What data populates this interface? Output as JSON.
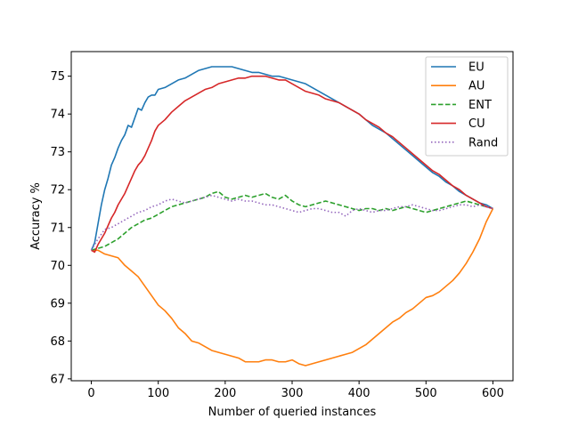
{
  "chart_data": {
    "type": "line",
    "title": "",
    "xlabel": "Number of queried instances",
    "ylabel": "Accuracy %",
    "xlim": [
      -30,
      630
    ],
    "ylim": [
      66.95,
      75.65
    ],
    "xticks": [
      0,
      100,
      200,
      300,
      400,
      500,
      600
    ],
    "yticks": [
      67,
      68,
      69,
      70,
      71,
      72,
      73,
      74,
      75
    ],
    "grid": false,
    "legend_position": "top-right",
    "series": [
      {
        "name": "EU",
        "color": "#1f77b4",
        "style": "solid",
        "x": [
          0,
          5,
          10,
          15,
          20,
          25,
          30,
          35,
          40,
          45,
          50,
          55,
          60,
          65,
          70,
          75,
          80,
          85,
          90,
          95,
          100,
          110,
          120,
          130,
          140,
          150,
          160,
          170,
          180,
          190,
          200,
          210,
          220,
          230,
          240,
          250,
          260,
          270,
          280,
          290,
          300,
          310,
          320,
          330,
          340,
          350,
          360,
          370,
          380,
          390,
          400,
          410,
          420,
          430,
          440,
          450,
          460,
          470,
          480,
          490,
          500,
          510,
          520,
          530,
          540,
          550,
          560,
          570,
          580,
          590,
          600
        ],
        "y": [
          70.4,
          70.6,
          71.1,
          71.6,
          72.0,
          72.3,
          72.65,
          72.85,
          73.1,
          73.3,
          73.45,
          73.7,
          73.65,
          73.9,
          74.15,
          74.1,
          74.3,
          74.45,
          74.5,
          74.5,
          74.65,
          74.7,
          74.8,
          74.9,
          74.95,
          75.05,
          75.15,
          75.2,
          75.25,
          75.25,
          75.25,
          75.25,
          75.2,
          75.15,
          75.1,
          75.1,
          75.05,
          75.0,
          75.0,
          74.95,
          74.9,
          74.85,
          74.8,
          74.7,
          74.6,
          74.5,
          74.4,
          74.3,
          74.2,
          74.1,
          74.0,
          73.85,
          73.7,
          73.6,
          73.5,
          73.35,
          73.2,
          73.05,
          72.9,
          72.75,
          72.6,
          72.45,
          72.35,
          72.2,
          72.1,
          71.95,
          71.85,
          71.75,
          71.65,
          71.6,
          71.5
        ]
      },
      {
        "name": "AU",
        "color": "#ff7f0e",
        "style": "solid",
        "x": [
          0,
          10,
          20,
          30,
          40,
          50,
          60,
          70,
          80,
          90,
          100,
          110,
          120,
          130,
          140,
          150,
          160,
          170,
          180,
          190,
          200,
          210,
          220,
          230,
          240,
          250,
          260,
          270,
          280,
          290,
          300,
          310,
          320,
          330,
          340,
          350,
          360,
          370,
          380,
          390,
          400,
          410,
          420,
          430,
          440,
          450,
          460,
          470,
          480,
          490,
          500,
          510,
          520,
          530,
          540,
          550,
          560,
          570,
          580,
          590,
          600
        ],
        "y": [
          70.4,
          70.4,
          70.3,
          70.25,
          70.2,
          70.0,
          69.85,
          69.7,
          69.45,
          69.2,
          68.95,
          68.8,
          68.6,
          68.35,
          68.2,
          68.0,
          67.95,
          67.85,
          67.75,
          67.7,
          67.65,
          67.6,
          67.55,
          67.45,
          67.45,
          67.45,
          67.5,
          67.5,
          67.45,
          67.45,
          67.5,
          67.4,
          67.35,
          67.4,
          67.45,
          67.5,
          67.55,
          67.6,
          67.65,
          67.7,
          67.8,
          67.9,
          68.05,
          68.2,
          68.35,
          68.5,
          68.6,
          68.75,
          68.85,
          69.0,
          69.15,
          69.2,
          69.3,
          69.45,
          69.6,
          69.8,
          70.05,
          70.35,
          70.7,
          71.15,
          71.5
        ]
      },
      {
        "name": "ENT",
        "color": "#2ca02c",
        "style": "dashed",
        "x": [
          0,
          10,
          20,
          30,
          40,
          50,
          60,
          70,
          80,
          90,
          100,
          110,
          120,
          130,
          140,
          150,
          160,
          170,
          180,
          190,
          200,
          210,
          220,
          230,
          240,
          250,
          260,
          270,
          280,
          290,
          300,
          310,
          320,
          330,
          340,
          350,
          360,
          370,
          380,
          390,
          400,
          410,
          420,
          430,
          440,
          450,
          460,
          470,
          480,
          490,
          500,
          510,
          520,
          530,
          540,
          550,
          560,
          570,
          580,
          590,
          600
        ],
        "y": [
          70.4,
          70.45,
          70.5,
          70.6,
          70.7,
          70.85,
          71.0,
          71.1,
          71.2,
          71.25,
          71.35,
          71.45,
          71.55,
          71.6,
          71.65,
          71.7,
          71.75,
          71.8,
          71.9,
          71.95,
          71.8,
          71.75,
          71.8,
          71.85,
          71.8,
          71.85,
          71.9,
          71.8,
          71.75,
          71.85,
          71.7,
          71.6,
          71.55,
          71.6,
          71.65,
          71.7,
          71.65,
          71.6,
          71.55,
          71.5,
          71.45,
          71.5,
          71.5,
          71.45,
          71.5,
          71.45,
          71.5,
          71.55,
          71.5,
          71.45,
          71.4,
          71.45,
          71.5,
          71.55,
          71.6,
          71.65,
          71.7,
          71.65,
          71.6,
          71.55,
          71.5
        ]
      },
      {
        "name": "CU",
        "color": "#d62728",
        "style": "solid",
        "x": [
          0,
          5,
          10,
          15,
          20,
          25,
          30,
          35,
          40,
          45,
          50,
          55,
          60,
          65,
          70,
          75,
          80,
          85,
          90,
          95,
          100,
          110,
          120,
          130,
          140,
          150,
          160,
          170,
          180,
          190,
          200,
          210,
          220,
          230,
          240,
          250,
          260,
          270,
          280,
          290,
          300,
          310,
          320,
          330,
          340,
          350,
          360,
          370,
          380,
          390,
          400,
          410,
          420,
          430,
          440,
          450,
          460,
          470,
          480,
          490,
          500,
          510,
          520,
          530,
          540,
          550,
          560,
          570,
          580,
          590,
          600
        ],
        "y": [
          70.4,
          70.35,
          70.55,
          70.7,
          70.85,
          71.05,
          71.25,
          71.4,
          71.6,
          71.75,
          71.9,
          72.1,
          72.3,
          72.5,
          72.65,
          72.75,
          72.9,
          73.1,
          73.3,
          73.55,
          73.7,
          73.85,
          74.05,
          74.2,
          74.35,
          74.45,
          74.55,
          74.65,
          74.7,
          74.8,
          74.85,
          74.9,
          74.95,
          74.95,
          75.0,
          75.0,
          75.0,
          74.95,
          74.9,
          74.9,
          74.8,
          74.7,
          74.6,
          74.55,
          74.5,
          74.4,
          74.35,
          74.3,
          74.2,
          74.1,
          74.0,
          73.85,
          73.75,
          73.65,
          73.5,
          73.4,
          73.25,
          73.1,
          72.95,
          72.8,
          72.65,
          72.5,
          72.4,
          72.25,
          72.1,
          72.0,
          71.85,
          71.75,
          71.65,
          71.55,
          71.5
        ]
      },
      {
        "name": "Rand",
        "color": "#9467bd",
        "style": "dotted",
        "x": [
          0,
          10,
          20,
          30,
          40,
          50,
          60,
          70,
          80,
          90,
          100,
          110,
          120,
          130,
          140,
          150,
          160,
          170,
          180,
          190,
          200,
          210,
          220,
          230,
          240,
          250,
          260,
          270,
          280,
          290,
          300,
          310,
          320,
          330,
          340,
          350,
          360,
          370,
          380,
          390,
          400,
          410,
          420,
          430,
          440,
          450,
          460,
          470,
          480,
          490,
          500,
          510,
          520,
          530,
          540,
          550,
          560,
          570,
          580,
          590,
          600
        ],
        "y": [
          70.4,
          70.7,
          70.95,
          71.0,
          71.1,
          71.2,
          71.3,
          71.4,
          71.45,
          71.55,
          71.6,
          71.7,
          71.75,
          71.7,
          71.65,
          71.7,
          71.75,
          71.8,
          71.85,
          71.8,
          71.75,
          71.7,
          71.75,
          71.7,
          71.7,
          71.65,
          71.6,
          71.6,
          71.55,
          71.5,
          71.45,
          71.4,
          71.45,
          71.5,
          71.5,
          71.45,
          71.4,
          71.4,
          71.3,
          71.45,
          71.5,
          71.45,
          71.4,
          71.45,
          71.45,
          71.5,
          71.55,
          71.55,
          71.6,
          71.55,
          71.5,
          71.45,
          71.45,
          71.5,
          71.55,
          71.6,
          71.6,
          71.55,
          71.6,
          71.55,
          71.5
        ]
      }
    ]
  }
}
